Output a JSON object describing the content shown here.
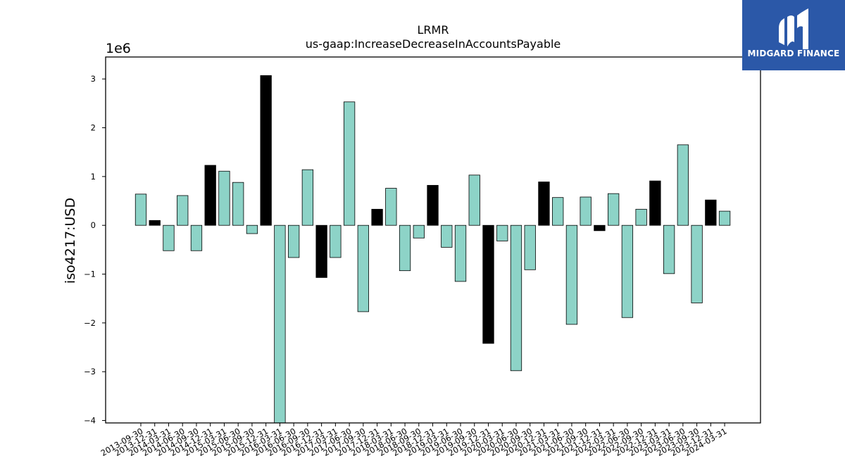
{
  "chart_data": {
    "type": "bar",
    "title": "LRMR",
    "subtitle": "us-gaap:IncreaseDecreaseInAccountsPayable",
    "ylabel": "iso4217:USD",
    "xlabel": "",
    "y_scale_label": "1e6",
    "ylim": [
      -4.05,
      3.45
    ],
    "yticks": [
      -4,
      -3,
      -2,
      -1,
      0,
      1,
      2,
      3
    ],
    "grid": false,
    "colors": {
      "quarter": "#8dd3c7",
      "annual": "#000000",
      "edge": "#000000"
    },
    "categories": [
      "2013-09-30",
      "2013-12-31",
      "2014-03-31",
      "2014-06-30",
      "2014-09-30",
      "2014-12-31",
      "2015-03-31",
      "2015-06-30",
      "2015-09-30",
      "2015-12-31",
      "2016-03-31",
      "2016-06-30",
      "2016-09-30",
      "2016-12-31",
      "2017-03-31",
      "2017-06-30",
      "2017-09-30",
      "2017-12-31",
      "2018-03-31",
      "2018-06-30",
      "2018-09-30",
      "2018-12-31",
      "2019-03-31",
      "2019-06-30",
      "2019-09-30",
      "2019-12-31",
      "2020-03-31",
      "2020-06-30",
      "2020-09-30",
      "2020-12-31",
      "2021-03-31",
      "2021-06-30",
      "2021-09-30",
      "2021-12-31",
      "2022-03-31",
      "2022-06-30",
      "2022-09-30",
      "2022-12-31",
      "2023-03-31",
      "2023-06-30",
      "2023-09-30",
      "2023-12-31",
      "2024-03-31"
    ],
    "values": [
      0.64,
      0.1,
      -0.52,
      0.61,
      -0.52,
      1.23,
      1.11,
      0.88,
      -0.17,
      3.07,
      -4.05,
      -0.66,
      1.14,
      -1.07,
      -0.66,
      2.53,
      -1.77,
      0.33,
      0.76,
      -0.93,
      -0.26,
      0.82,
      -0.45,
      -1.15,
      1.03,
      -2.42,
      -0.32,
      -2.98,
      -0.91,
      0.89,
      0.57,
      -2.03,
      0.58,
      -0.11,
      0.65,
      -1.89,
      0.33,
      0.91,
      -0.99,
      1.65,
      -1.59,
      0.52,
      0.29
    ],
    "annual": [
      false,
      true,
      false,
      false,
      false,
      true,
      false,
      false,
      false,
      true,
      false,
      false,
      false,
      true,
      false,
      false,
      false,
      true,
      false,
      false,
      false,
      true,
      false,
      false,
      false,
      true,
      false,
      false,
      false,
      true,
      false,
      false,
      false,
      true,
      false,
      false,
      false,
      true,
      false,
      false,
      false,
      true,
      false
    ]
  },
  "logo": {
    "text": "MIDGARD FINANCE",
    "color": "#2b58a8",
    "icon": "midgard-logo-icon"
  }
}
